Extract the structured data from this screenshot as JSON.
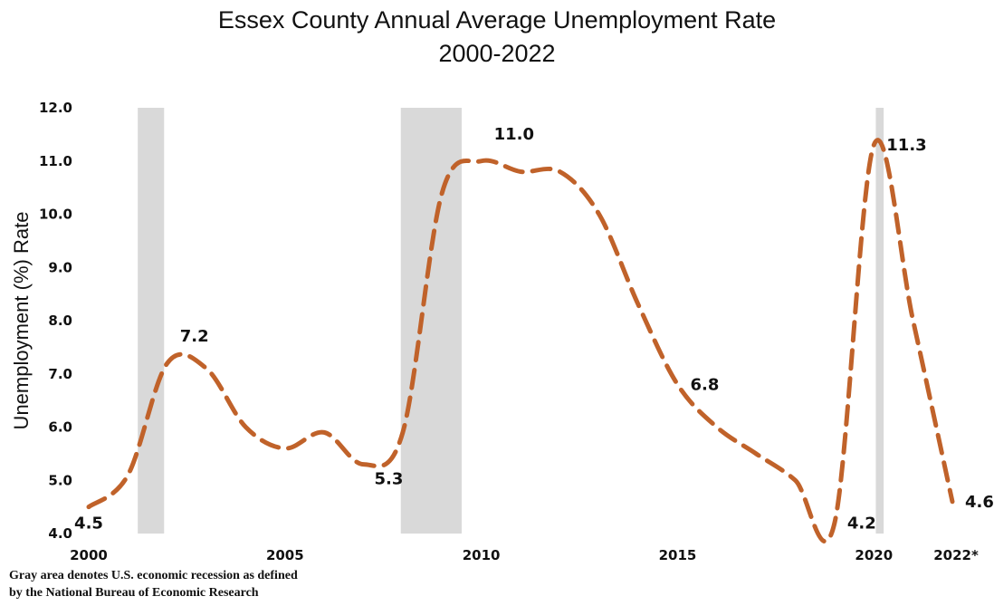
{
  "chart_data": {
    "type": "line",
    "title": "Essex County Annual Average Unemployment Rate",
    "subtitle": "2000-2022",
    "ylabel": "Unemployment  (%) Rate",
    "xlabel": "",
    "xlim": [
      2000,
      2022.3
    ],
    "ylim": [
      4.0,
      12.0
    ],
    "y_ticks": [
      "4.0",
      "5.0",
      "6.0",
      "7.0",
      "8.0",
      "9.0",
      "10.0",
      "11.0",
      "12.0"
    ],
    "x_ticks": [
      {
        "x": 2000,
        "label": "2000"
      },
      {
        "x": 2005,
        "label": "2005"
      },
      {
        "x": 2010,
        "label": "2010"
      },
      {
        "x": 2015,
        "label": "2015"
      },
      {
        "x": 2020,
        "label": "2020"
      },
      {
        "x": 2022,
        "label": "2022*"
      }
    ],
    "series": [
      {
        "name": "",
        "color": "#C0622A",
        "line_style": "dashed",
        "x": [
          2000,
          2001,
          2002,
          2003,
          2004,
          2005,
          2006,
          2007,
          2008,
          2009,
          2010,
          2011,
          2012,
          2013,
          2014,
          2015,
          2016,
          2017,
          2018,
          2019,
          2020,
          2021,
          2022
        ],
        "values": [
          4.5,
          5.1,
          7.2,
          7.1,
          6.0,
          5.6,
          5.9,
          5.3,
          5.9,
          10.4,
          11.0,
          10.8,
          10.8,
          10.0,
          8.3,
          6.8,
          6.0,
          5.5,
          5.0,
          4.2,
          11.3,
          8.0,
          4.6
        ]
      }
    ],
    "data_labels": [
      {
        "x": 2000,
        "y": 4.5,
        "text": "4.5",
        "pos": "below"
      },
      {
        "x": 2002,
        "y": 7.2,
        "text": "7.2",
        "pos": "above-right"
      },
      {
        "x": 2007,
        "y": 5.3,
        "text": "5.3",
        "pos": "below-right"
      },
      {
        "x": 2010,
        "y": 11.0,
        "text": "11.0",
        "pos": "above-right"
      },
      {
        "x": 2015,
        "y": 6.8,
        "text": "6.8",
        "pos": "right"
      },
      {
        "x": 2019,
        "y": 4.2,
        "text": "4.2",
        "pos": "right"
      },
      {
        "x": 2020,
        "y": 11.3,
        "text": "11.3",
        "pos": "right"
      },
      {
        "x": 2022,
        "y": 4.6,
        "text": "4.6* *",
        "pos": "right"
      }
    ],
    "recessions": [
      {
        "start": 2001.25,
        "end": 2001.92
      },
      {
        "start": 2007.95,
        "end": 2009.5
      },
      {
        "start": 2020.05,
        "end": 2020.25
      }
    ],
    "recession_color": "#D9D9D9",
    "grid": false,
    "legend": "none"
  },
  "footnote": {
    "line1": "Gray area denotes U.S. economic recession as defined",
    "line2": "by the National Bureau of Economic Research"
  }
}
